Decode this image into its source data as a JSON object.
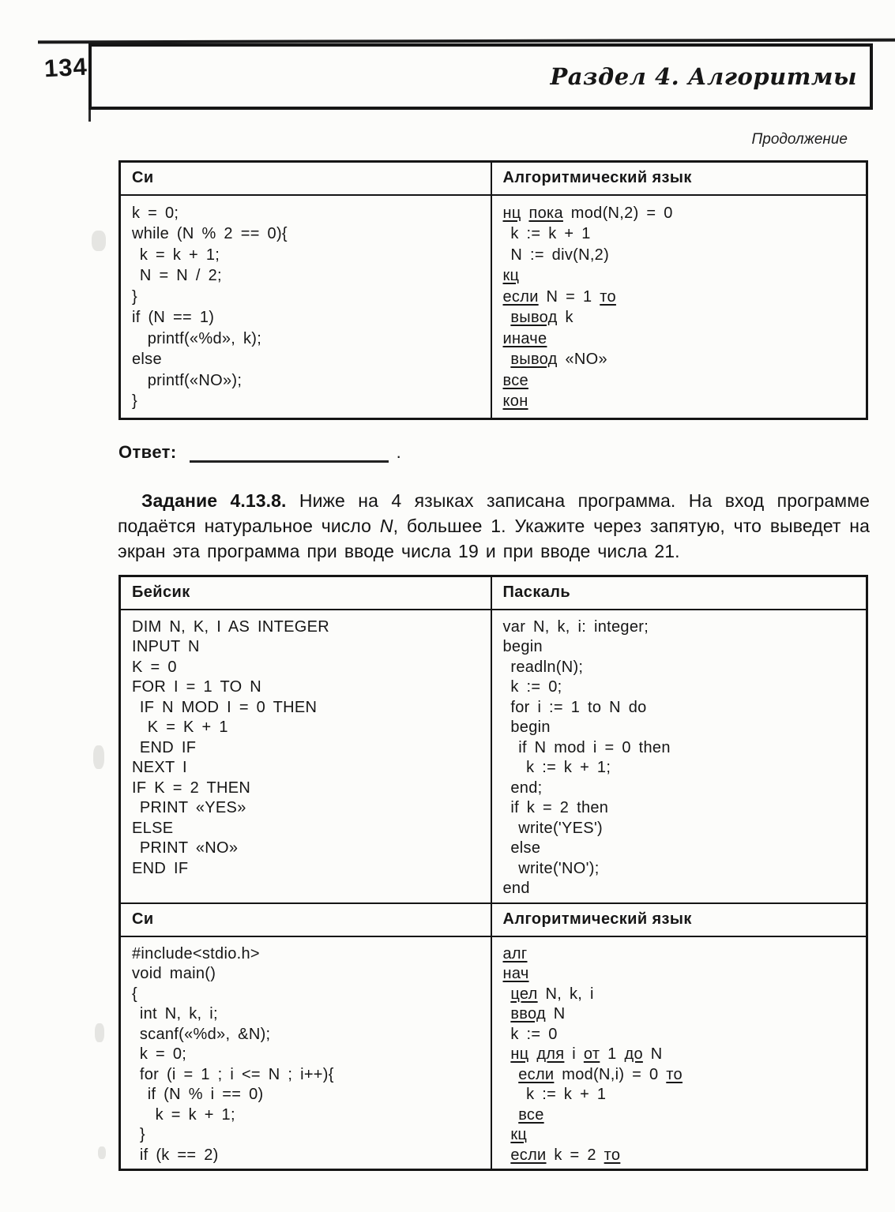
{
  "page": {
    "number": "134",
    "header_title": "Раздел 4. Алгоритмы",
    "continuation_label": "Продолжение"
  },
  "table1": {
    "headers": {
      "c": "Си",
      "algo": "Алгоритмический язык"
    },
    "c_code": [
      "k = 0;",
      "while (N % 2 == 0){",
      " k = k + 1;",
      " N = N / 2;",
      "}",
      "if (N == 1)",
      "  printf(«%d», k);",
      "else",
      "  printf(«NO»);",
      "}"
    ],
    "algo_code": [
      "_нц_ _пока_ mod(N,2) = 0",
      " k := k + 1",
      " N := div(N,2)",
      "_кц_",
      "_если_ N = 1 _то_",
      " _вывод_ k",
      "_иначе_",
      " _вывод_ «NO»",
      "_все_",
      "_кон_"
    ]
  },
  "answer": {
    "label": "Ответ:",
    "suffix": "."
  },
  "task": {
    "number": "Задание 4.13.8.",
    "text_before_var": " Ниже на 4 языках записана программа. На вход программе подаётся натуральное число ",
    "variable": "N",
    "text_after_var": ", большее 1. Укажите через запятую, что выведет на экран эта программа при вводе числа 19 и при вводе числа 21."
  },
  "table2": {
    "headers": {
      "basic": "Бейсик",
      "pascal": "Паскаль",
      "c": "Си",
      "algo": "Алгоритмический язык"
    },
    "basic_code": [
      "DIM N, K, I AS INTEGER",
      "INPUT N",
      "K = 0",
      "FOR I = 1 TO N",
      " IF N MOD I = 0 THEN",
      "  K = K + 1",
      " END IF",
      "NEXT I",
      "IF K = 2 THEN",
      " PRINT «YES»",
      "ELSE",
      " PRINT «NO»",
      "END IF"
    ],
    "pascal_code": [
      "var N, k, i: integer;",
      "begin",
      " readln(N);",
      " k := 0;",
      " for i := 1 to N do",
      " begin",
      "  if N mod i = 0 then",
      "   k := k + 1;",
      " end;",
      " if k = 2 then",
      "  write('YES')",
      " else",
      "  write('NO');",
      "end"
    ],
    "c_code": [
      "#include<stdio.h>",
      "void main()",
      "{",
      " int N, k, i;",
      " scanf(«%d», &N);",
      " k = 0;",
      " for (i = 1 ; i <= N ; i++){",
      "  if (N % i == 0)",
      "   k = k + 1;",
      " }",
      " if (k == 2)"
    ],
    "algo_code": [
      "_алг_",
      "_нач_",
      " _цел_ N, k, i",
      " _ввод_ N",
      " k := 0",
      " _нц_ _для_ i _от_ 1 _до_ N",
      "  _если_ mod(N,i) = 0 _то_",
      "   k := k + 1",
      "  _все_",
      " _кц_",
      " _если_ k = 2 _то_"
    ]
  }
}
